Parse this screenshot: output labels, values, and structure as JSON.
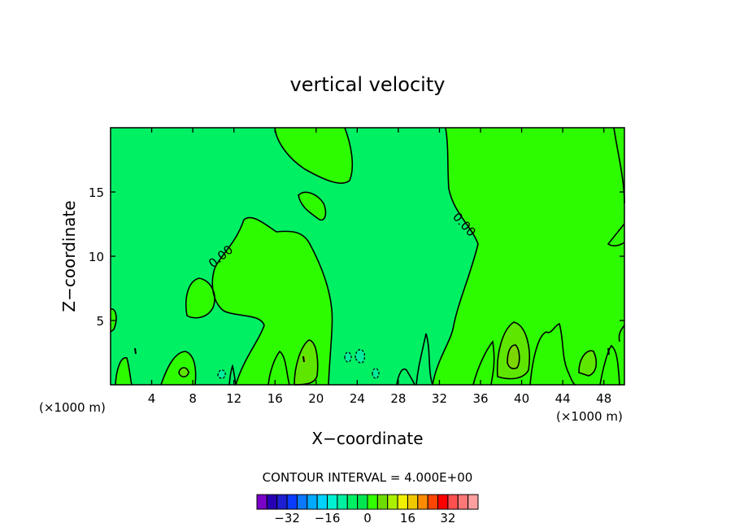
{
  "chart_data": {
    "type": "contour",
    "title": "vertical velocity",
    "xlabel": "X−coordinate",
    "ylabel": "Z−coordinate",
    "xlim": [
      0,
      50
    ],
    "ylim": [
      0,
      20
    ],
    "x_ticks": [
      4,
      8,
      12,
      16,
      20,
      24,
      28,
      32,
      36,
      40,
      44,
      48
    ],
    "y_ticks": [
      5,
      10,
      15
    ],
    "x_unit_left": "(×1000 m)",
    "x_unit_right": "(×1000 m)",
    "contour_label_a": "0.00",
    "contour_label_b": "0.00",
    "contour_interval_text": "CONTOUR INTERVAL = 4.000E+00",
    "colorbar": {
      "colors": [
        "#7a00c8",
        "#2800b4",
        "#1e1ed2",
        "#0a3cff",
        "#0a78ff",
        "#00aaff",
        "#00d2ff",
        "#00f0d2",
        "#00f0a0",
        "#00f064",
        "#00e650",
        "#32ff00",
        "#6edc00",
        "#aaf000",
        "#f0f000",
        "#f0c800",
        "#ff8c00",
        "#ff4600",
        "#ff0000",
        "#ff5050",
        "#ff7878",
        "#ffa0a0"
      ],
      "tick_values": [
        -32,
        -16,
        0,
        16,
        32
      ],
      "tick_labels": [
        "−32",
        "−16",
        "0",
        "16",
        "32"
      ]
    },
    "fill_colors": {
      "background": "#00f064",
      "positive": "#2dfc00",
      "stronger": "#5ee600",
      "core": "#7cd600",
      "negative": "#00ec9c"
    }
  }
}
